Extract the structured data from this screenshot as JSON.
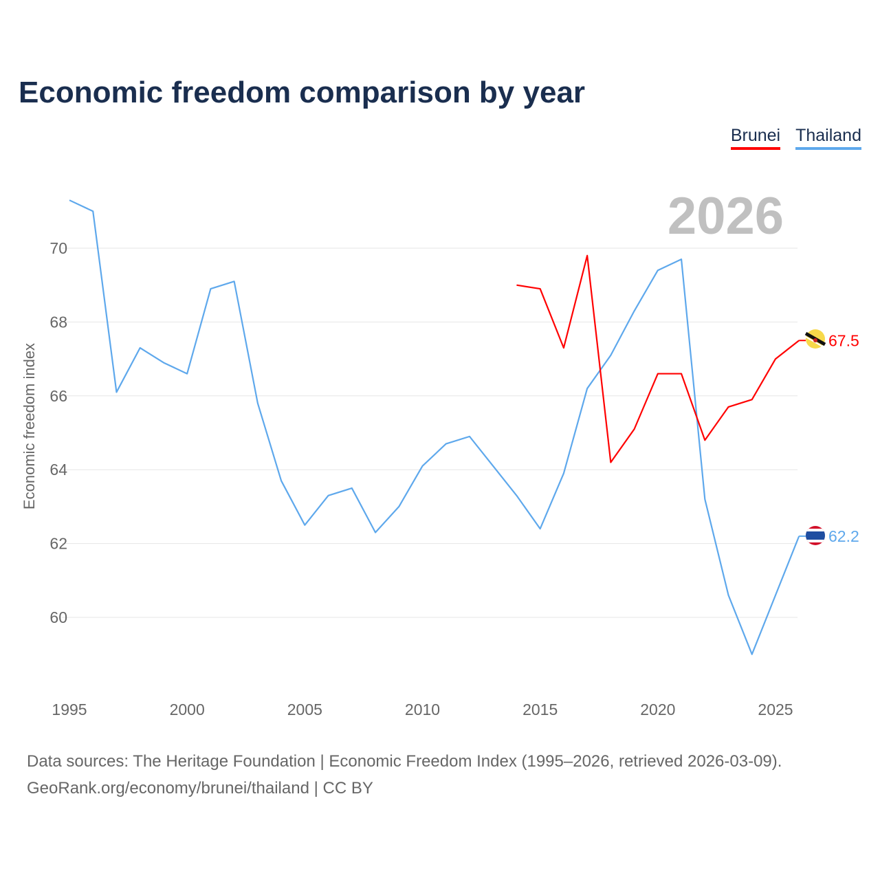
{
  "title": "Economic freedom comparison by year",
  "footer": {
    "line1": "Data sources: The Heritage Foundation | Economic Freedom Index (1995–2026, retrieved 2026-03-09).",
    "line2": "GeoRank.org/economy/brunei/thailand | CC BY"
  },
  "chart_data": {
    "type": "line",
    "title": "Economic freedom comparison by year",
    "xlabel": "",
    "ylabel": "Economic freedom index",
    "xlim": [
      1995,
      2026
    ],
    "ylim": [
      58,
      72
    ],
    "x_ticks": [
      1995,
      2000,
      2005,
      2010,
      2015,
      2020,
      2025
    ],
    "y_ticks": [
      60,
      62,
      64,
      66,
      68,
      70
    ],
    "grid": true,
    "legend_position": "top-right",
    "year_watermark": "2026",
    "series": [
      {
        "name": "Brunei",
        "color": "#ff0000",
        "end_label": "67.5",
        "x": [
          2014,
          2015,
          2016,
          2017,
          2018,
          2019,
          2020,
          2021,
          2022,
          2023,
          2024,
          2025,
          2026
        ],
        "values": [
          69.0,
          68.9,
          67.3,
          69.8,
          64.2,
          65.1,
          66.6,
          66.6,
          64.8,
          65.7,
          65.9,
          67.0,
          67.5
        ]
      },
      {
        "name": "Thailand",
        "color": "#5ea8ec",
        "end_label": "62.2",
        "x": [
          1995,
          1996,
          1997,
          1998,
          1999,
          2000,
          2001,
          2002,
          2003,
          2004,
          2005,
          2006,
          2007,
          2008,
          2009,
          2010,
          2011,
          2012,
          2013,
          2014,
          2015,
          2016,
          2017,
          2018,
          2019,
          2020,
          2021,
          2022,
          2023,
          2024,
          2025,
          2026
        ],
        "values": [
          71.3,
          71.0,
          66.1,
          67.3,
          66.9,
          66.6,
          68.9,
          69.1,
          65.8,
          63.7,
          62.5,
          63.3,
          63.5,
          62.3,
          63.0,
          64.1,
          64.7,
          64.9,
          64.1,
          63.3,
          62.4,
          63.9,
          66.2,
          67.1,
          68.3,
          69.4,
          69.7,
          63.2,
          60.6,
          59.0,
          60.6,
          62.2
        ]
      }
    ]
  }
}
